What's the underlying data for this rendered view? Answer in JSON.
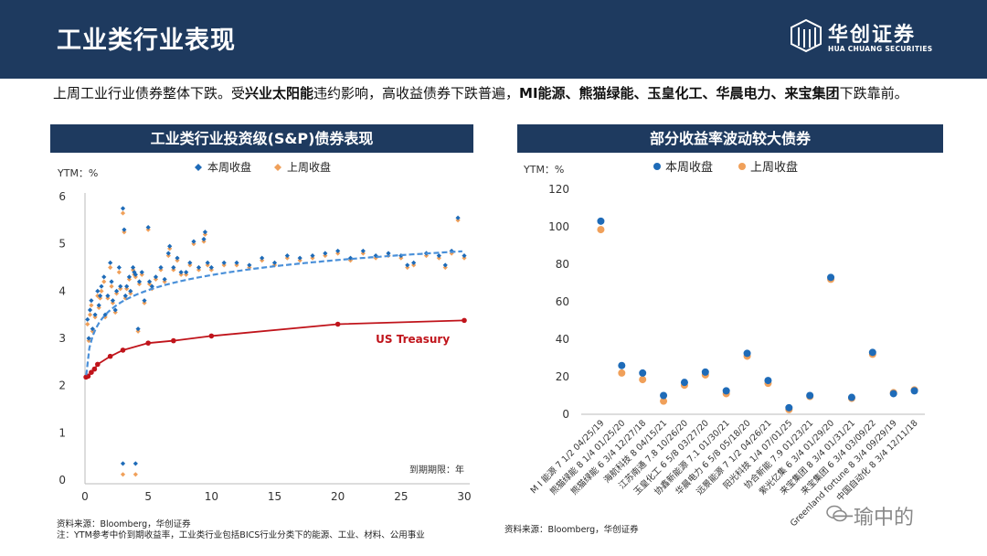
{
  "header": {
    "title": "工业类行业表现"
  },
  "logo": {
    "cn": "华创证券",
    "en": "HUA CHUANG SECURITIES"
  },
  "summary": {
    "p1": "上周工业行业债券整体下跌。受",
    "b1": "兴业太阳能",
    "p2": "违约影响，高收益债券下跌普遍，",
    "b2": "MI能源、熊猫绿能、玉皇化工、华晨电力、来宝集团",
    "p3": "下跌靠前。"
  },
  "colors": {
    "header": "#1e3a5f",
    "current": "#1e6bb8",
    "previous": "#f0a05a",
    "treasury": "#c0141b",
    "fit": "#4a90d9"
  },
  "left_panel": {
    "title": "工业类行业投资级(S&P)债券表现"
  },
  "right_panel": {
    "title": "部分收益率波动较大债券"
  },
  "chart_data": [
    {
      "type": "scatter",
      "title": "工业类行业投资级(S&P)债券表现",
      "ylabel": "YTM：%",
      "xlabel": "到期期限：年",
      "xlim": [
        0,
        30
      ],
      "ylim": [
        0,
        6
      ],
      "xticks": [
        "0",
        "5",
        "10",
        "15",
        "20",
        "25",
        "30"
      ],
      "yticks": [
        "0",
        "1",
        "2",
        "3",
        "4",
        "5",
        "6"
      ],
      "legend": [
        "本周收盘",
        "上周收盘"
      ],
      "annotation": "US Treasury",
      "series": [
        {
          "name": "US Treasury",
          "kind": "line",
          "points": [
            [
              0.08,
              2.18
            ],
            [
              0.25,
              2.2
            ],
            [
              0.5,
              2.28
            ],
            [
              0.75,
              2.35
            ],
            [
              1,
              2.45
            ],
            [
              2,
              2.62
            ],
            [
              3,
              2.75
            ],
            [
              5,
              2.9
            ],
            [
              7,
              2.95
            ],
            [
              10,
              3.05
            ],
            [
              20,
              3.3
            ],
            [
              30,
              3.38
            ]
          ]
        },
        {
          "name": "trend",
          "kind": "log-fit",
          "a": 3.28,
          "b": 0.46
        },
        {
          "name": "本周收盘",
          "kind": "scatter",
          "points": [
            [
              0.2,
              3.4
            ],
            [
              0.3,
              3.0
            ],
            [
              0.4,
              3.6
            ],
            [
              0.5,
              3.8
            ],
            [
              0.6,
              3.2
            ],
            [
              0.8,
              3.5
            ],
            [
              1.0,
              4.0
            ],
            [
              1.1,
              3.7
            ],
            [
              1.2,
              3.9
            ],
            [
              1.3,
              4.1
            ],
            [
              1.5,
              4.3
            ],
            [
              1.6,
              3.5
            ],
            [
              1.8,
              3.9
            ],
            [
              2.0,
              4.6
            ],
            [
              2.1,
              4.2
            ],
            [
              2.2,
              3.8
            ],
            [
              2.4,
              3.6
            ],
            [
              2.5,
              4.0
            ],
            [
              2.7,
              4.5
            ],
            [
              2.8,
              4.1
            ],
            [
              3.0,
              5.75
            ],
            [
              3.1,
              5.3
            ],
            [
              3.2,
              3.9
            ],
            [
              3.3,
              4.1
            ],
            [
              3.5,
              4.3
            ],
            [
              3.6,
              4.0
            ],
            [
              3.8,
              4.5
            ],
            [
              3.9,
              4.4
            ],
            [
              4.0,
              4.35
            ],
            [
              4.2,
              3.2
            ],
            [
              4.3,
              4.2
            ],
            [
              4.5,
              4.4
            ],
            [
              4.7,
              3.8
            ],
            [
              5.0,
              5.35
            ],
            [
              5.1,
              4.2
            ],
            [
              5.3,
              4.1
            ],
            [
              5.6,
              4.3
            ],
            [
              6.0,
              4.5
            ],
            [
              6.3,
              4.25
            ],
            [
              6.6,
              4.8
            ],
            [
              6.7,
              4.95
            ],
            [
              7.0,
              4.5
            ],
            [
              7.3,
              4.7
            ],
            [
              7.6,
              4.4
            ],
            [
              8.0,
              4.4
            ],
            [
              8.3,
              4.6
            ],
            [
              8.6,
              5.05
            ],
            [
              9.0,
              4.5
            ],
            [
              9.4,
              5.1
            ],
            [
              9.5,
              5.25
            ],
            [
              9.7,
              4.6
            ],
            [
              10,
              4.5
            ],
            [
              11,
              4.6
            ],
            [
              12,
              4.6
            ],
            [
              13,
              4.55
            ],
            [
              14,
              4.7
            ],
            [
              15,
              4.6
            ],
            [
              16,
              4.75
            ],
            [
              17,
              4.7
            ],
            [
              18,
              4.75
            ],
            [
              19,
              4.8
            ],
            [
              20,
              4.85
            ],
            [
              21,
              4.7
            ],
            [
              22,
              4.85
            ],
            [
              23,
              4.75
            ],
            [
              24,
              4.8
            ],
            [
              25,
              4.75
            ],
            [
              25.5,
              4.55
            ],
            [
              26,
              4.6
            ],
            [
              27,
              4.8
            ],
            [
              28,
              4.75
            ],
            [
              28.5,
              4.55
            ],
            [
              29,
              4.85
            ],
            [
              29.5,
              5.55
            ],
            [
              30,
              4.75
            ],
            [
              3.0,
              0.35
            ],
            [
              4.0,
              0.35
            ]
          ]
        },
        {
          "name": "上周收盘",
          "kind": "scatter",
          "points": [
            [
              0.2,
              3.3
            ],
            [
              0.3,
              2.95
            ],
            [
              0.4,
              3.5
            ],
            [
              0.5,
              3.7
            ],
            [
              0.6,
              3.15
            ],
            [
              0.8,
              3.45
            ],
            [
              1.0,
              3.9
            ],
            [
              1.1,
              3.65
            ],
            [
              1.2,
              3.85
            ],
            [
              1.3,
              4.0
            ],
            [
              1.5,
              4.2
            ],
            [
              1.6,
              3.45
            ],
            [
              1.8,
              3.85
            ],
            [
              2.0,
              4.5
            ],
            [
              2.1,
              4.1
            ],
            [
              2.2,
              3.75
            ],
            [
              2.4,
              3.55
            ],
            [
              2.5,
              3.95
            ],
            [
              2.7,
              4.4
            ],
            [
              2.8,
              4.05
            ],
            [
              3.0,
              5.65
            ],
            [
              3.1,
              5.25
            ],
            [
              3.2,
              3.85
            ],
            [
              3.3,
              4.05
            ],
            [
              3.5,
              4.25
            ],
            [
              3.6,
              3.95
            ],
            [
              3.8,
              4.45
            ],
            [
              3.9,
              4.35
            ],
            [
              4.0,
              4.3
            ],
            [
              4.2,
              3.15
            ],
            [
              4.3,
              4.15
            ],
            [
              4.5,
              4.35
            ],
            [
              4.7,
              3.75
            ],
            [
              5.0,
              5.3
            ],
            [
              5.1,
              4.15
            ],
            [
              5.3,
              4.05
            ],
            [
              5.6,
              4.25
            ],
            [
              6.0,
              4.45
            ],
            [
              6.3,
              4.2
            ],
            [
              6.6,
              4.75
            ],
            [
              6.7,
              4.9
            ],
            [
              7.0,
              4.45
            ],
            [
              7.3,
              4.65
            ],
            [
              7.6,
              4.35
            ],
            [
              8.0,
              4.35
            ],
            [
              8.3,
              4.55
            ],
            [
              8.6,
              5.0
            ],
            [
              9.0,
              4.45
            ],
            [
              9.4,
              5.05
            ],
            [
              9.5,
              5.2
            ],
            [
              9.7,
              4.55
            ],
            [
              10,
              4.45
            ],
            [
              11,
              4.55
            ],
            [
              12,
              4.55
            ],
            [
              13,
              4.5
            ],
            [
              14,
              4.65
            ],
            [
              15,
              4.55
            ],
            [
              16,
              4.7
            ],
            [
              17,
              4.65
            ],
            [
              18,
              4.7
            ],
            [
              19,
              4.75
            ],
            [
              20,
              4.8
            ],
            [
              21,
              4.65
            ],
            [
              22,
              4.8
            ],
            [
              23,
              4.7
            ],
            [
              24,
              4.75
            ],
            [
              25,
              4.7
            ],
            [
              25.5,
              4.5
            ],
            [
              26,
              4.55
            ],
            [
              27,
              4.75
            ],
            [
              28,
              4.7
            ],
            [
              28.5,
              4.5
            ],
            [
              29,
              4.8
            ],
            [
              29.5,
              5.5
            ],
            [
              30,
              4.7
            ],
            [
              3.0,
              0.12
            ],
            [
              4.0,
              0.12
            ]
          ]
        }
      ]
    },
    {
      "type": "scatter",
      "title": "部分收益率波动较大债券",
      "ylabel": "YTM：%",
      "ylim": [
        0,
        120
      ],
      "yticks": [
        "0",
        "20",
        "40",
        "60",
        "80",
        "100",
        "120"
      ],
      "legend": [
        "本周收盘",
        "上周收盘"
      ],
      "categories": [
        "M I 能源 7 1/2 04/25/19",
        "熊猫绿能 8 1/4 01/25/20",
        "熊猫绿能 6 3/4 12/27/18",
        "海航科技 8 04/15/21",
        "江苏南通 7.8 10/26/20",
        "玉皇化工 6 5/8 03/27/20",
        "协鑫新能源 7.1 01/30/21",
        "华晨电力 6 5/8 05/18/20",
        "远景能源 7 1/2 04/26/21",
        "阳光科技 1/4 07/01/25",
        "协合新能 7.9 01/23/21",
        "紫光亿集 6 3/4 01/29/20",
        "来宝集团 8 3/4 01/31/21",
        "来宝集团 6 3/4 03/09/22",
        "Greenland fortune 8 3/4 09/29/19",
        "中国自动化 8 3/4 12/11/18"
      ],
      "series": [
        {
          "name": "本周收盘",
          "values": [
            103,
            26,
            22,
            10,
            17,
            22.5,
            12.5,
            32.5,
            18,
            3.5,
            10,
            73,
            9,
            33,
            11,
            12.5
          ]
        },
        {
          "name": "上周收盘",
          "values": [
            98.5,
            22,
            18.5,
            7,
            15.5,
            21,
            11,
            31,
            16.5,
            2.5,
            9.5,
            72,
            8.5,
            32,
            11.5,
            13
          ]
        }
      ]
    }
  ],
  "sources": {
    "left_1": "资料来源：Bloomberg，华创证券",
    "left_2": "注：YTM参考中价到期收益率，工业类行业包括BICS行业分类下的能源、工业、材料、公用事业",
    "right": "资料来源：Bloomberg，华创证券"
  },
  "watermark": "一瑜中的"
}
